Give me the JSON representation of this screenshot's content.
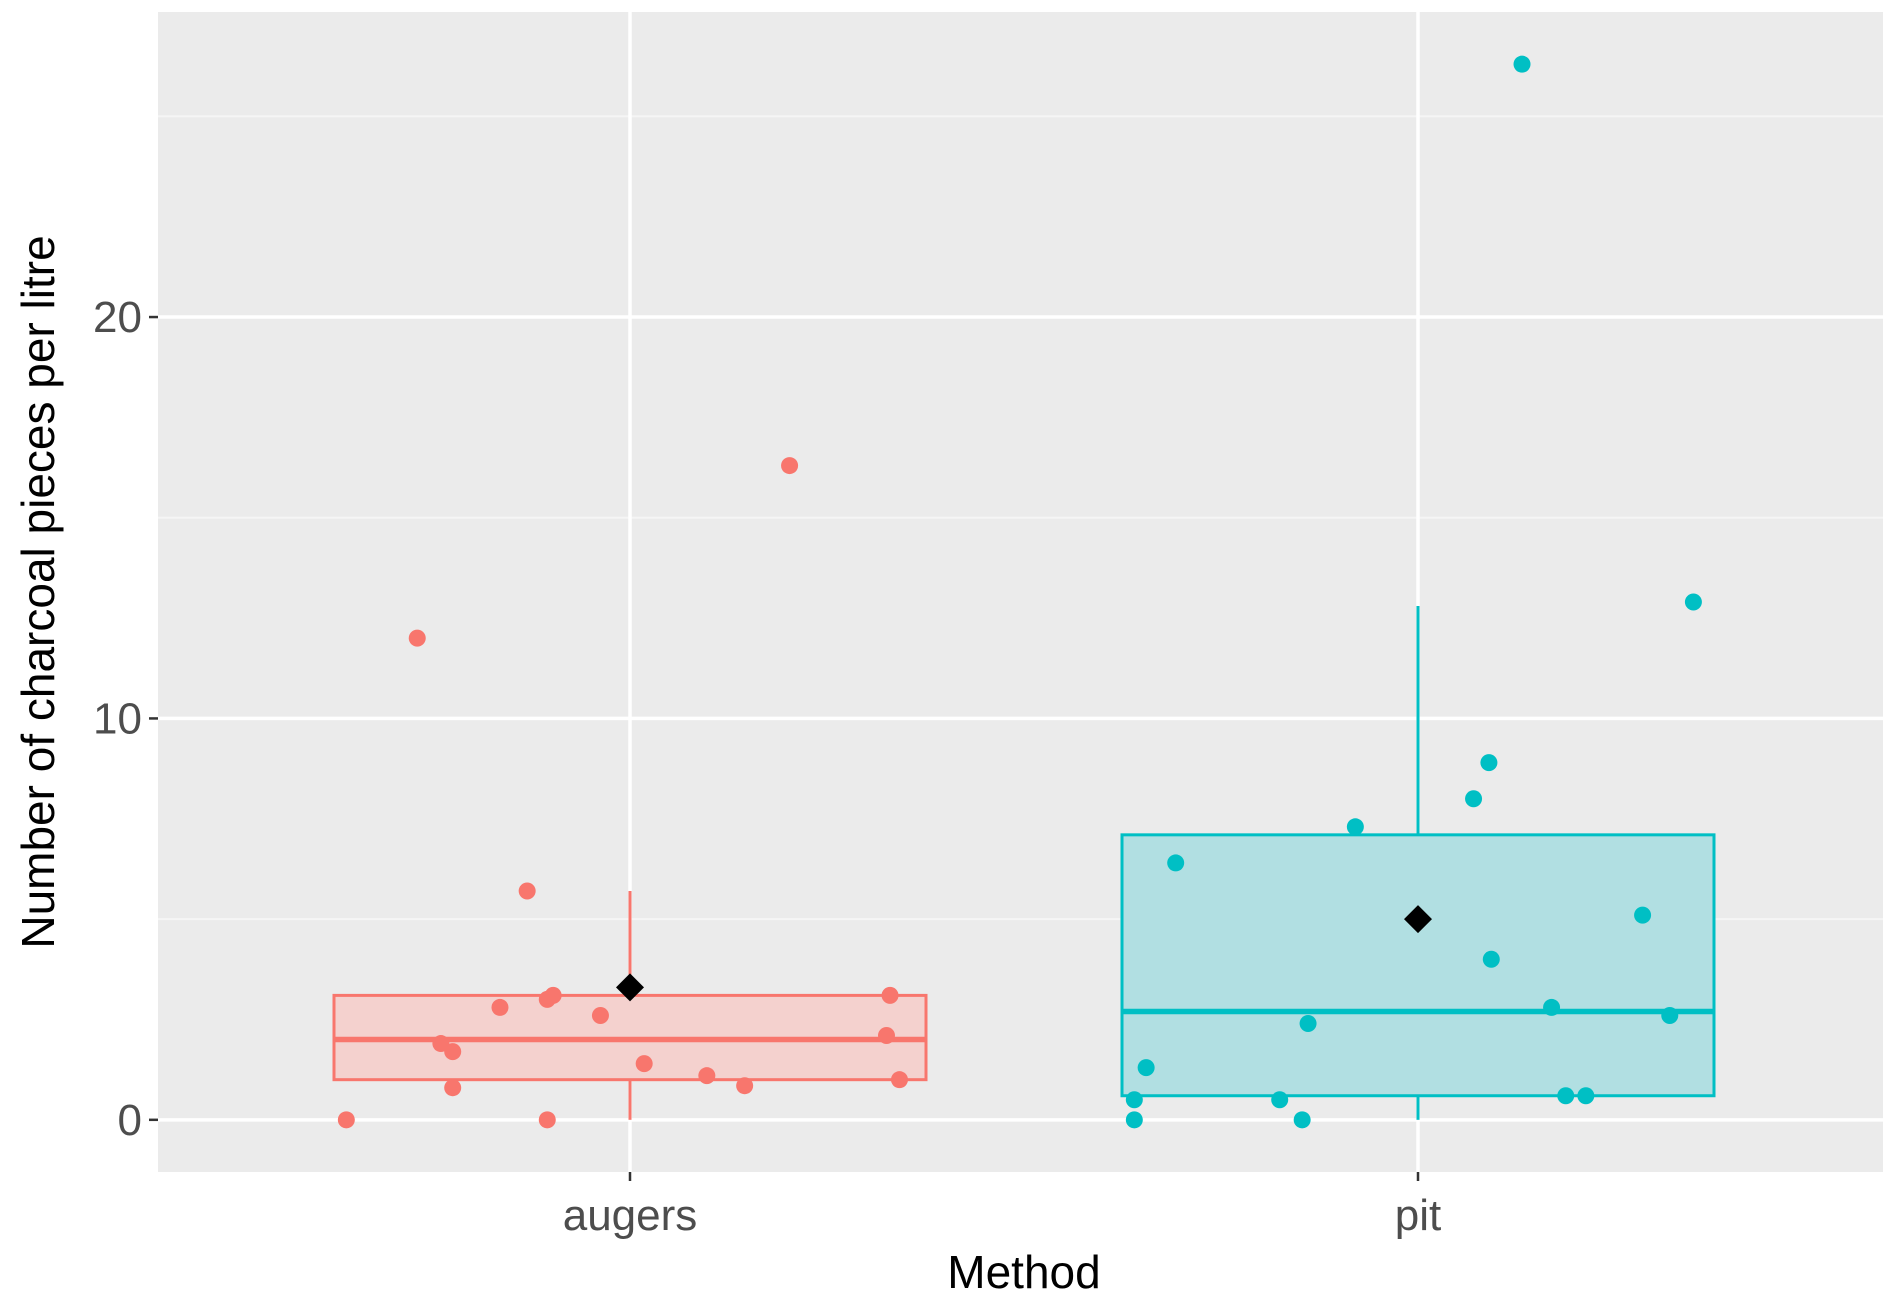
{
  "chart_data": {
    "type": "box",
    "xlabel": "Method",
    "ylabel": "Number of charcoal pieces per litre",
    "categories": [
      "augers",
      "pit"
    ],
    "ylim": [
      -1.3,
      27.6
    ],
    "yticks": [
      0,
      10,
      20
    ],
    "grid": true,
    "legend": "none",
    "series": [
      {
        "category": "augers",
        "color": "#F8766D",
        "fill": "#F4D1CE",
        "box": {
          "lower_whisker": 0,
          "q1": 1.0,
          "median": 2.0,
          "q3": 3.1,
          "upper_whisker": 5.7
        },
        "mean": 3.3,
        "points": [
          {
            "x": -0.24,
            "y": 0
          },
          {
            "x": -0.18,
            "y": 12.0
          },
          {
            "x": -0.16,
            "y": 1.9
          },
          {
            "x": -0.15,
            "y": 1.7
          },
          {
            "x": -0.15,
            "y": 0.8
          },
          {
            "x": -0.11,
            "y": 2.8
          },
          {
            "x": -0.087,
            "y": 5.7
          },
          {
            "x": -0.07,
            "y": 3.0
          },
          {
            "x": -0.065,
            "y": 3.1
          },
          {
            "x": -0.07,
            "y": 0
          },
          {
            "x": -0.025,
            "y": 2.6
          },
          {
            "x": 0.012,
            "y": 1.4
          },
          {
            "x": 0.065,
            "y": 1.1
          },
          {
            "x": 0.097,
            "y": 0.85
          },
          {
            "x": 0.135,
            "y": 16.3
          },
          {
            "x": 0.217,
            "y": 2.1
          },
          {
            "x": 0.22,
            "y": 3.1
          },
          {
            "x": 0.228,
            "y": 1.0
          }
        ]
      },
      {
        "category": "pit",
        "color": "#00BFC4",
        "fill": "#B1DFE2",
        "box": {
          "lower_whisker": 0,
          "q1": 0.6,
          "median": 2.7,
          "q3": 7.1,
          "upper_whisker": 12.8
        },
        "mean": 5.0,
        "points": [
          {
            "x": -0.24,
            "y": 0
          },
          {
            "x": -0.24,
            "y": 0.5
          },
          {
            "x": -0.23,
            "y": 1.3
          },
          {
            "x": -0.205,
            "y": 6.4
          },
          {
            "x": -0.117,
            "y": 0.5
          },
          {
            "x": -0.098,
            "y": 0
          },
          {
            "x": -0.093,
            "y": 2.4
          },
          {
            "x": -0.053,
            "y": 7.3
          },
          {
            "x": 0.047,
            "y": 8.0
          },
          {
            "x": 0.06,
            "y": 8.9
          },
          {
            "x": 0.062,
            "y": 4.0
          },
          {
            "x": 0.088,
            "y": 26.3
          },
          {
            "x": 0.113,
            "y": 2.8
          },
          {
            "x": 0.125,
            "y": 0.6
          },
          {
            "x": 0.142,
            "y": 0.6
          },
          {
            "x": 0.19,
            "y": 5.1
          },
          {
            "x": 0.213,
            "y": 2.6
          },
          {
            "x": 0.233,
            "y": 12.9
          }
        ]
      }
    ]
  }
}
